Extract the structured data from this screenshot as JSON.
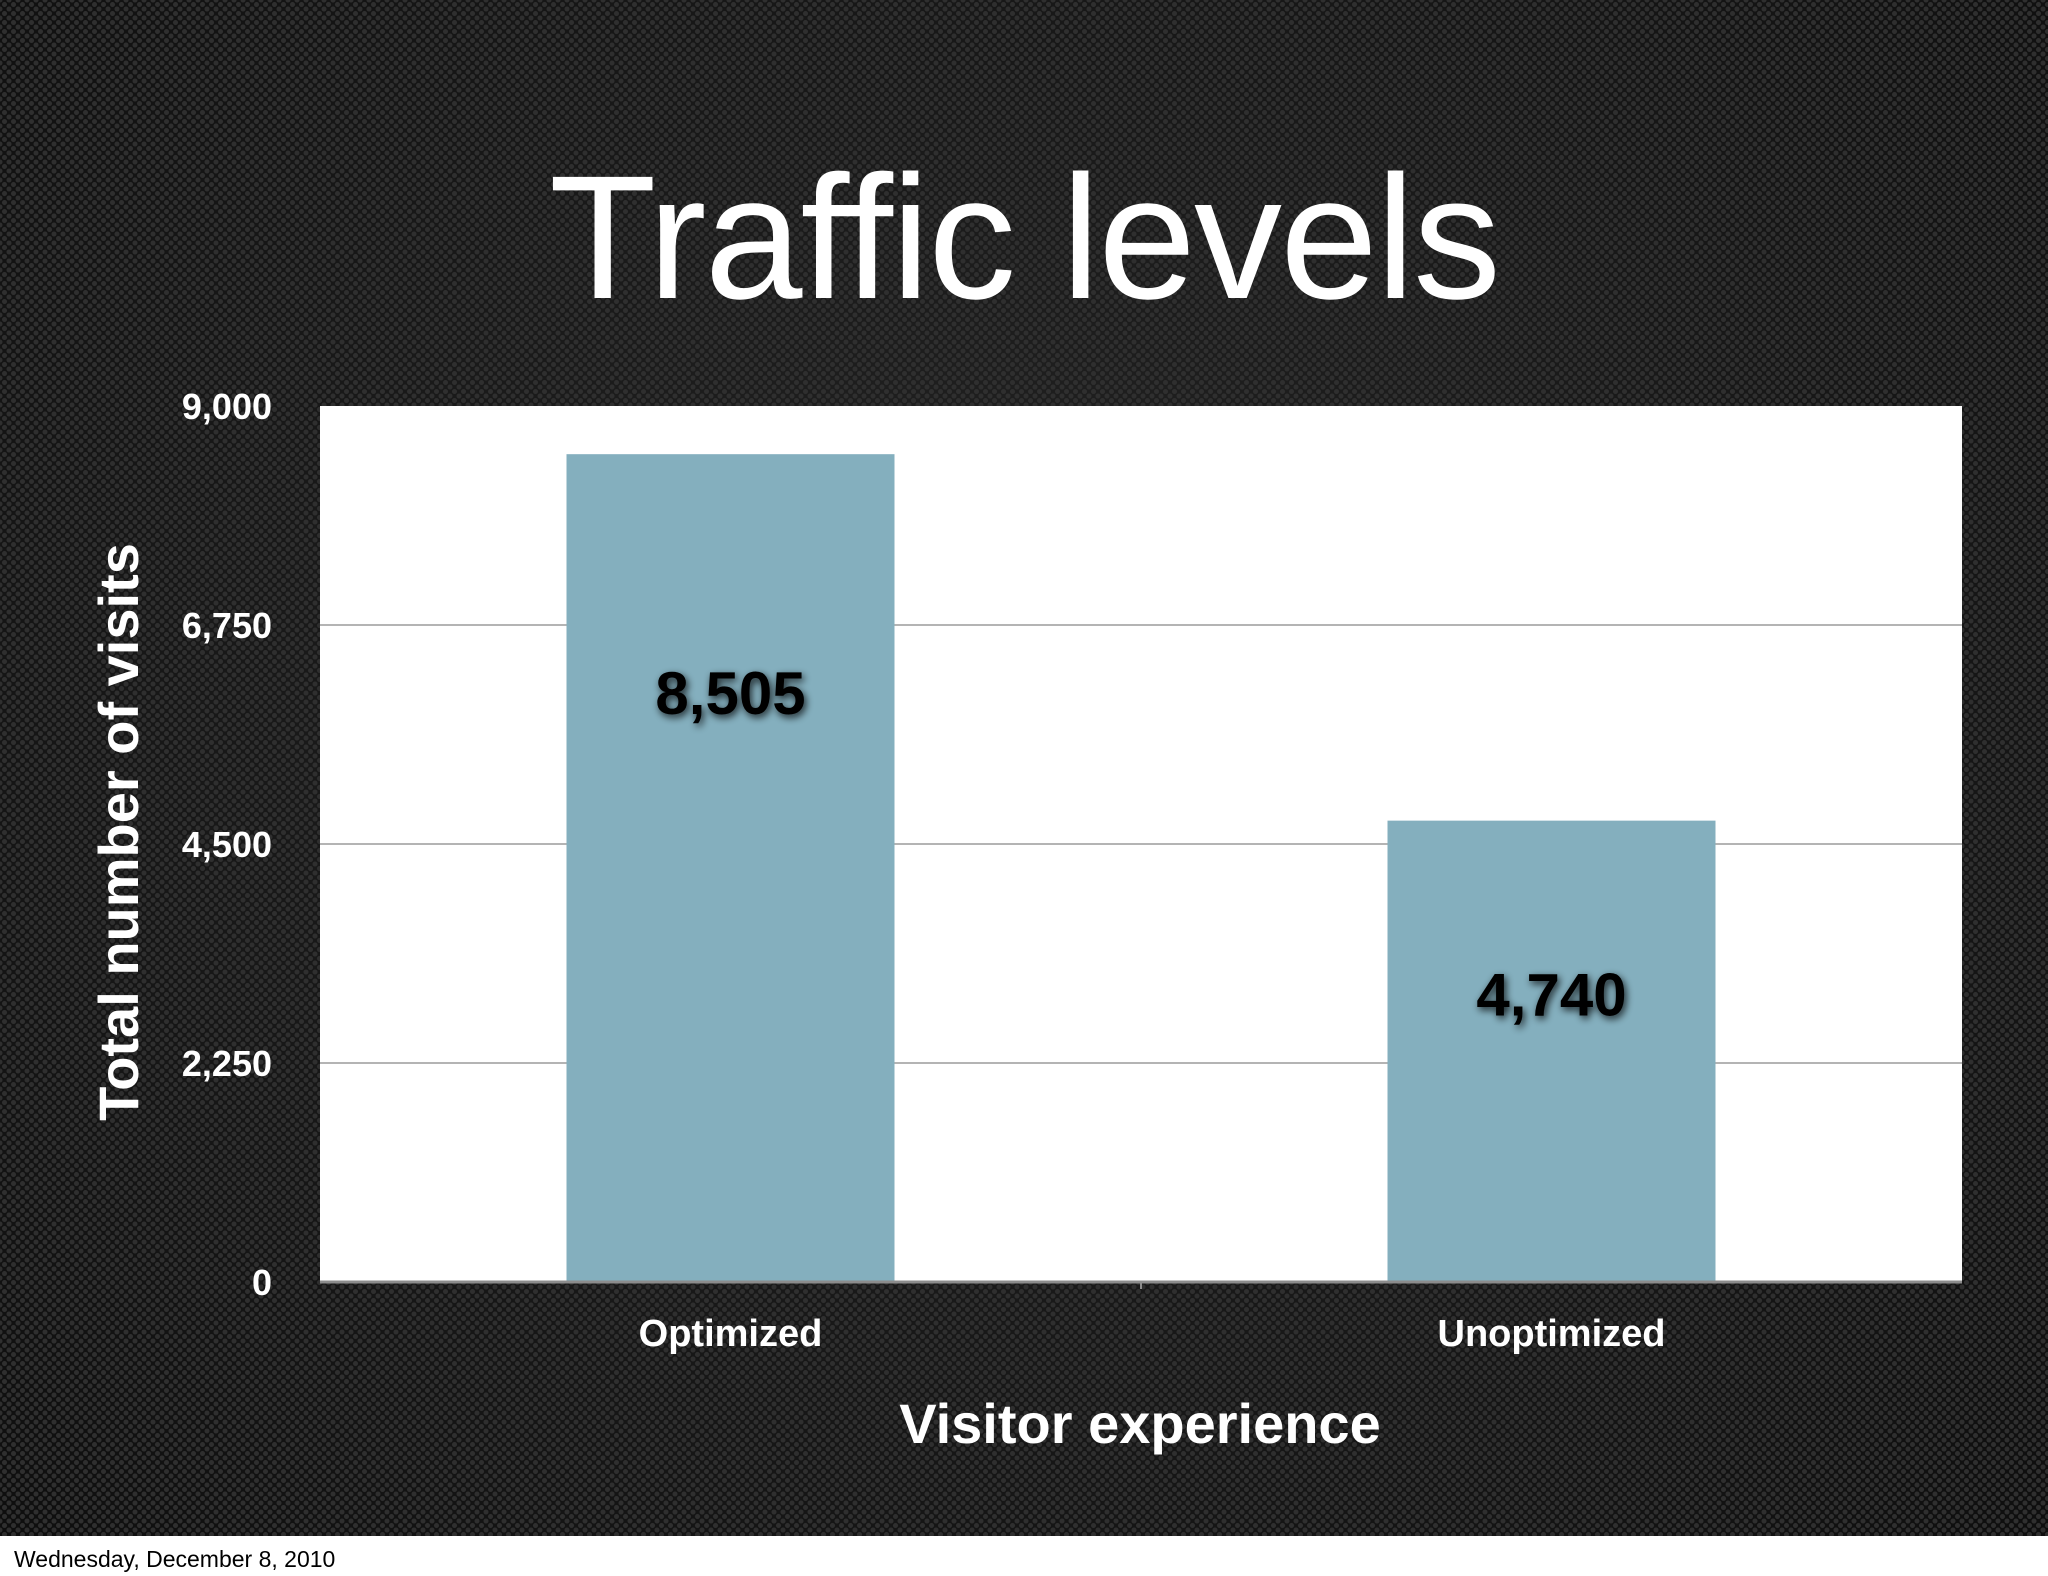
{
  "slide": {
    "title": "Traffic levels",
    "footer_date": "Wednesday, December 8, 2010"
  },
  "colors": {
    "bar": "#84afbe",
    "plot_background": "#ffffff",
    "gridline": "#b4b4b4",
    "slide_background": "#1c1c1c"
  },
  "chart_data": {
    "type": "bar",
    "categories": [
      "Optimized",
      "Unoptimized"
    ],
    "values": [
      8505,
      4740
    ],
    "data_labels": [
      "8,505",
      "4,740"
    ],
    "xlabel": "Visitor experience",
    "ylabel": "Total number of visits",
    "ylim": [
      0,
      9000
    ],
    "yticks": [
      0,
      2250,
      4500,
      6750,
      9000
    ],
    "ytick_labels": [
      "0",
      "2,250",
      "4,500",
      "6,750",
      "9,000"
    ],
    "grid": true,
    "legend": "none"
  }
}
